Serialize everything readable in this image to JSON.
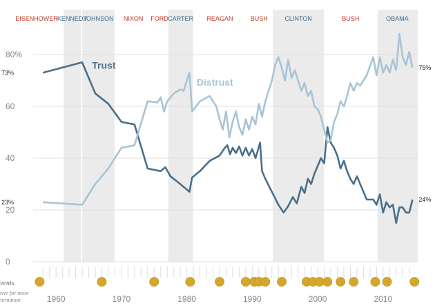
{
  "chart_data": {
    "type": "line",
    "title": "",
    "xlabel": "",
    "ylabel": "",
    "xlim": [
      1956.5,
      2015.3
    ],
    "ylim": [
      0,
      80
    ],
    "y_ticks": [
      {
        "value": 0,
        "label": "0"
      },
      {
        "value": 20,
        "label": "20"
      },
      {
        "value": 40,
        "label": "40"
      },
      {
        "value": 60,
        "label": "60"
      },
      {
        "value": 80,
        "label": "80%"
      }
    ],
    "x_ticks": [
      {
        "value": 1960,
        "label": "1960"
      },
      {
        "value": 1970,
        "label": "1970"
      },
      {
        "value": 1980,
        "label": "1980"
      },
      {
        "value": 1990,
        "label": "1990"
      },
      {
        "value": 2000,
        "label": "2000"
      },
      {
        "value": 2010,
        "label": "2010"
      }
    ],
    "presidents": [
      {
        "name": "EISENHOWER",
        "party": "R",
        "start": 1953.0,
        "end": 1961.05
      },
      {
        "name": "KENNEDY",
        "party": "D",
        "start": 1961.05,
        "end": 1963.9
      },
      {
        "name": "JOHNSON",
        "party": "D",
        "start": 1963.9,
        "end": 1969.05
      },
      {
        "name": "NIXON",
        "party": "R",
        "start": 1969.05,
        "end": 1974.6
      },
      {
        "name": "FORD",
        "party": "R",
        "start": 1974.6,
        "end": 1977.05
      },
      {
        "name": "CARTER",
        "party": "D",
        "start": 1977.05,
        "end": 1981.05
      },
      {
        "name": "REAGAN",
        "party": "R",
        "start": 1981.05,
        "end": 1989.05
      },
      {
        "name": "BUSH",
        "party": "R",
        "start": 1989.05,
        "end": 1993.05
      },
      {
        "name": "CLINTON",
        "party": "D",
        "start": 1993.05,
        "end": 2001.05
      },
      {
        "name": "BUSH",
        "party": "R",
        "start": 2001.05,
        "end": 2009.05
      },
      {
        "name": "OBAMA",
        "party": "D",
        "start": 2009.05,
        "end": 2015.3
      }
    ],
    "series": [
      {
        "name": "Trust",
        "color": "#4a6f8a",
        "start_label": "73%",
        "end_label": "24%",
        "points": [
          [
            1958,
            73
          ],
          [
            1964,
            77
          ],
          [
            1966,
            65
          ],
          [
            1968,
            61
          ],
          [
            1970,
            54
          ],
          [
            1972,
            53
          ],
          [
            1974,
            36
          ],
          [
            1976,
            35
          ],
          [
            1976.7,
            36.5
          ],
          [
            1977.5,
            33
          ],
          [
            1979,
            30
          ],
          [
            1980.4,
            27
          ],
          [
            1980.8,
            32.5
          ],
          [
            1982,
            35
          ],
          [
            1983.5,
            39
          ],
          [
            1985,
            41
          ],
          [
            1985.8,
            44
          ],
          [
            1986.2,
            45
          ],
          [
            1986.6,
            41.5
          ],
          [
            1987,
            44
          ],
          [
            1987.5,
            42
          ],
          [
            1988,
            44.5
          ],
          [
            1988.5,
            41
          ],
          [
            1989,
            44
          ],
          [
            1989.5,
            41
          ],
          [
            1990,
            43.5
          ],
          [
            1990.5,
            40
          ],
          [
            1991.2,
            46
          ],
          [
            1991.5,
            35
          ],
          [
            1992,
            32
          ],
          [
            1993,
            27
          ],
          [
            1994,
            22
          ],
          [
            1994.8,
            19
          ],
          [
            1995.5,
            21.5
          ],
          [
            1996.2,
            25
          ],
          [
            1996.8,
            22.5
          ],
          [
            1997.5,
            29
          ],
          [
            1998,
            26.5
          ],
          [
            1998.5,
            32
          ],
          [
            1999,
            30
          ],
          [
            1999.5,
            34
          ],
          [
            2000,
            37
          ],
          [
            2000.5,
            40
          ],
          [
            2001,
            38
          ],
          [
            2001.5,
            52
          ],
          [
            2002,
            46
          ],
          [
            2002.5,
            44
          ],
          [
            2003,
            41
          ],
          [
            2003.5,
            36
          ],
          [
            2004,
            39
          ],
          [
            2004.5,
            35
          ],
          [
            2005,
            32
          ],
          [
            2005.5,
            30
          ],
          [
            2006,
            33
          ],
          [
            2006.5,
            30
          ],
          [
            2007,
            27
          ],
          [
            2007.5,
            24
          ],
          [
            2008.5,
            24
          ],
          [
            2009,
            22
          ],
          [
            2009.5,
            26
          ],
          [
            2010,
            19
          ],
          [
            2010.5,
            23
          ],
          [
            2011,
            21
          ],
          [
            2011.5,
            22
          ],
          [
            2012,
            15
          ],
          [
            2012.5,
            21
          ],
          [
            2013,
            21
          ],
          [
            2013.5,
            19
          ],
          [
            2014,
            19
          ],
          [
            2014.5,
            24
          ]
        ]
      },
      {
        "name": "Distrust",
        "color": "#a8c4d6",
        "start_label": "23%",
        "end_label": "75%",
        "points": [
          [
            1958,
            23
          ],
          [
            1964,
            22
          ],
          [
            1966,
            30
          ],
          [
            1968,
            36
          ],
          [
            1970,
            44
          ],
          [
            1972,
            45
          ],
          [
            1974,
            62
          ],
          [
            1975.5,
            61.5
          ],
          [
            1976,
            63.5
          ],
          [
            1976.5,
            58
          ],
          [
            1977,
            62
          ],
          [
            1978,
            65
          ],
          [
            1979,
            66.5
          ],
          [
            1979.5,
            66
          ],
          [
            1980.4,
            73
          ],
          [
            1980.8,
            58
          ],
          [
            1982,
            62
          ],
          [
            1983.5,
            64
          ],
          [
            1984.5,
            60
          ],
          [
            1985,
            55
          ],
          [
            1985.5,
            51
          ],
          [
            1986,
            58
          ],
          [
            1986.5,
            48
          ],
          [
            1987,
            54
          ],
          [
            1987.5,
            58
          ],
          [
            1988,
            52
          ],
          [
            1988.5,
            49
          ],
          [
            1989,
            55
          ],
          [
            1989.5,
            51
          ],
          [
            1990,
            56
          ],
          [
            1990.5,
            53
          ],
          [
            1991,
            61
          ],
          [
            1991.5,
            56
          ],
          [
            1992,
            62
          ],
          [
            1993,
            70
          ],
          [
            1993.5,
            76
          ],
          [
            1994,
            79
          ],
          [
            1994.5,
            75
          ],
          [
            1995,
            70
          ],
          [
            1995.5,
            78
          ],
          [
            1996,
            71
          ],
          [
            1996.5,
            74
          ],
          [
            1997,
            70
          ],
          [
            1997.5,
            66
          ],
          [
            1998,
            69
          ],
          [
            1998.5,
            64
          ],
          [
            1999,
            66
          ],
          [
            1999.5,
            60
          ],
          [
            2000,
            59
          ],
          [
            2000.5,
            56
          ],
          [
            2001,
            51
          ],
          [
            2001.5,
            46
          ],
          [
            2002,
            47
          ],
          [
            2002.5,
            54
          ],
          [
            2003,
            57
          ],
          [
            2003.5,
            62
          ],
          [
            2004,
            60
          ],
          [
            2004.5,
            64
          ],
          [
            2005,
            69
          ],
          [
            2005.5,
            66
          ],
          [
            2006,
            69
          ],
          [
            2006.5,
            68
          ],
          [
            2007.5,
            72
          ],
          [
            2008.5,
            79
          ],
          [
            2009,
            72
          ],
          [
            2009.5,
            79
          ],
          [
            2010,
            73
          ],
          [
            2010.5,
            76
          ],
          [
            2011,
            73
          ],
          [
            2011.5,
            78
          ],
          [
            2012,
            74
          ],
          [
            2012.5,
            88
          ],
          [
            2013,
            79
          ],
          [
            2013.5,
            76
          ],
          [
            2014,
            81
          ],
          [
            2014.5,
            75
          ]
        ]
      }
    ],
    "events": {
      "label": "Events",
      "more_lines": [
        "Hover for more",
        "information"
      ],
      "marker_color": "#d4a72c",
      "years": [
        1957.5,
        1967,
        1975,
        1980.5,
        1985,
        1989,
        1990.3,
        1991,
        1992,
        1994.5,
        1998.3,
        1999.3,
        2000.3,
        2001.5,
        2003.5,
        2005.5,
        2008.8,
        2010.6,
        2014.8
      ]
    }
  }
}
